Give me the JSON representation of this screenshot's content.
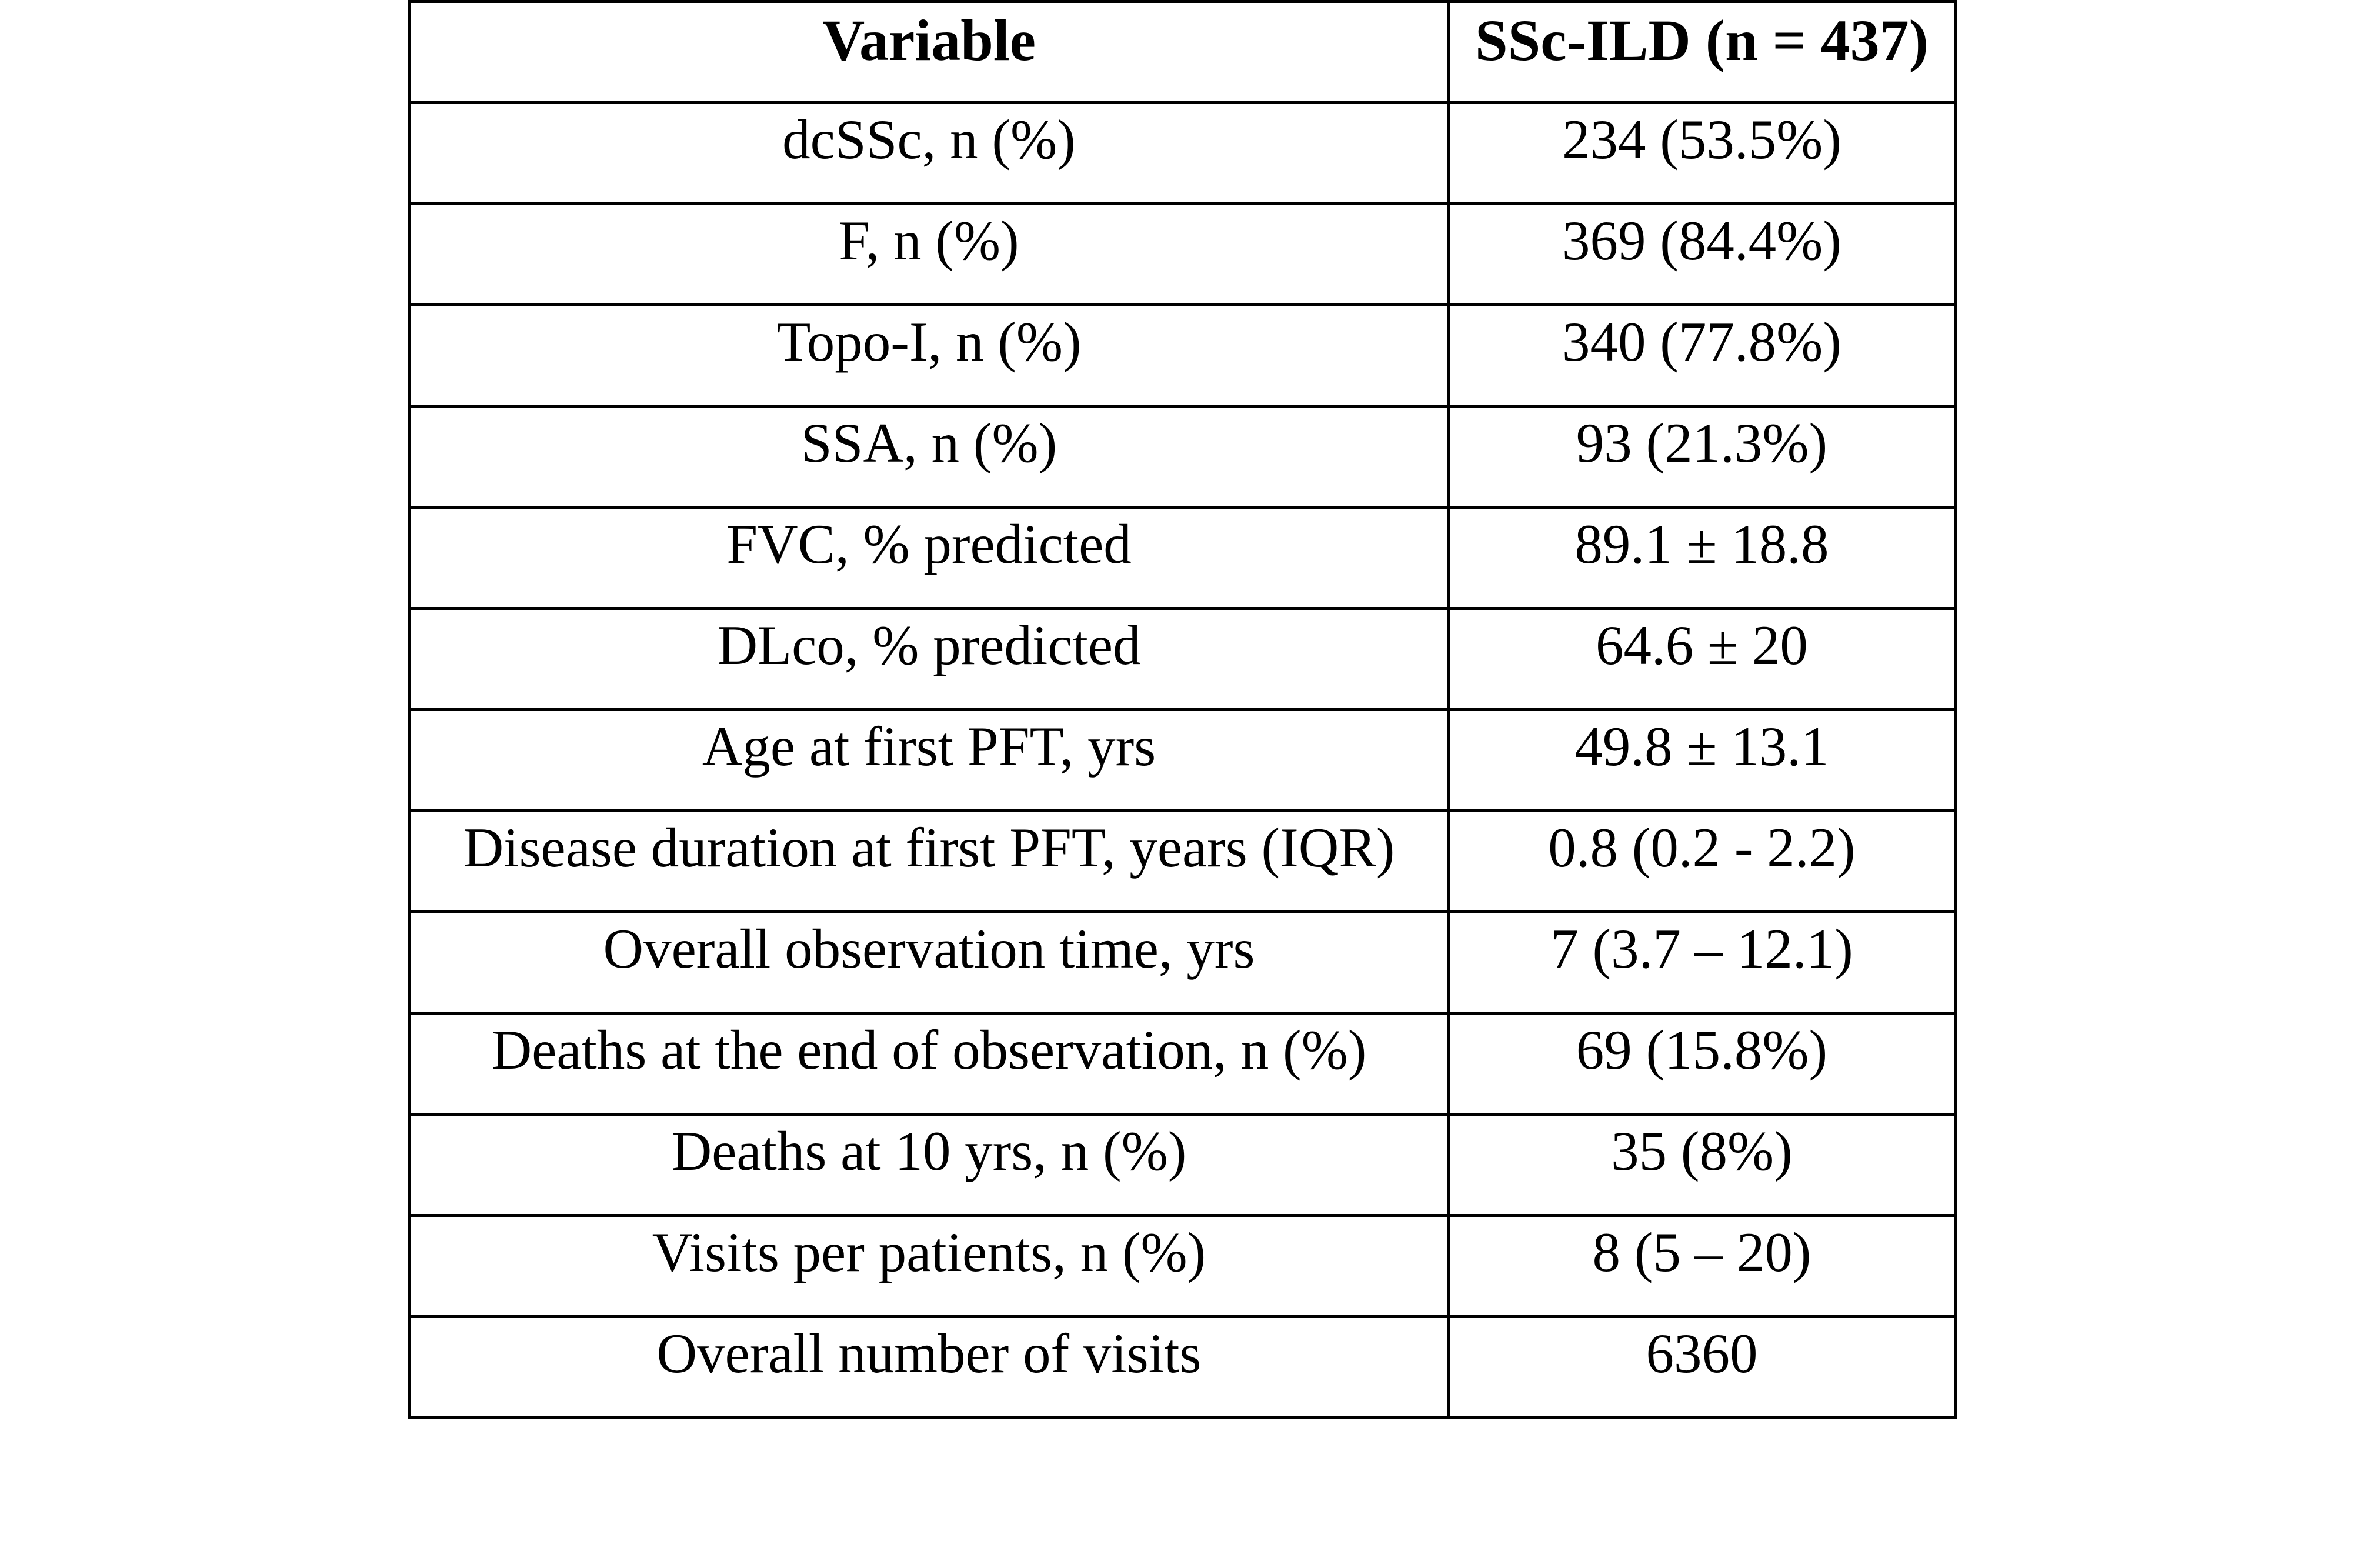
{
  "table": {
    "columns": [
      "Variable",
      "SSc-ILD (n = 437)"
    ],
    "rows": [
      [
        "dcSSc, n (%)",
        "234 (53.5%)"
      ],
      [
        "F, n (%)",
        "369 (84.4%)"
      ],
      [
        "Topo-I, n (%)",
        "340 (77.8%)"
      ],
      [
        "SSA, n (%)",
        "93 (21.3%)"
      ],
      [
        "FVC, % predicted",
        "89.1 ± 18.8"
      ],
      [
        "DLco, % predicted",
        "64.6 ± 20"
      ],
      [
        "Age at first PFT, yrs",
        "49.8 ± 13.1"
      ],
      [
        "Disease duration at first PFT, years (IQR)",
        "0.8 (0.2 - 2.2)"
      ],
      [
        "Overall observation time, yrs",
        "7 (3.7 – 12.1)"
      ],
      [
        "Deaths at the end of observation, n (%)",
        "69 (15.8%)"
      ],
      [
        "Deaths at 10 yrs, n (%)",
        "35 (8%)"
      ],
      [
        "Visits per patients, n (%)",
        "8 (5 – 20)"
      ],
      [
        "Overall number of visits",
        "6360"
      ]
    ]
  },
  "colors": {
    "text": "#000000",
    "border": "#000000",
    "background": "#ffffff"
  }
}
